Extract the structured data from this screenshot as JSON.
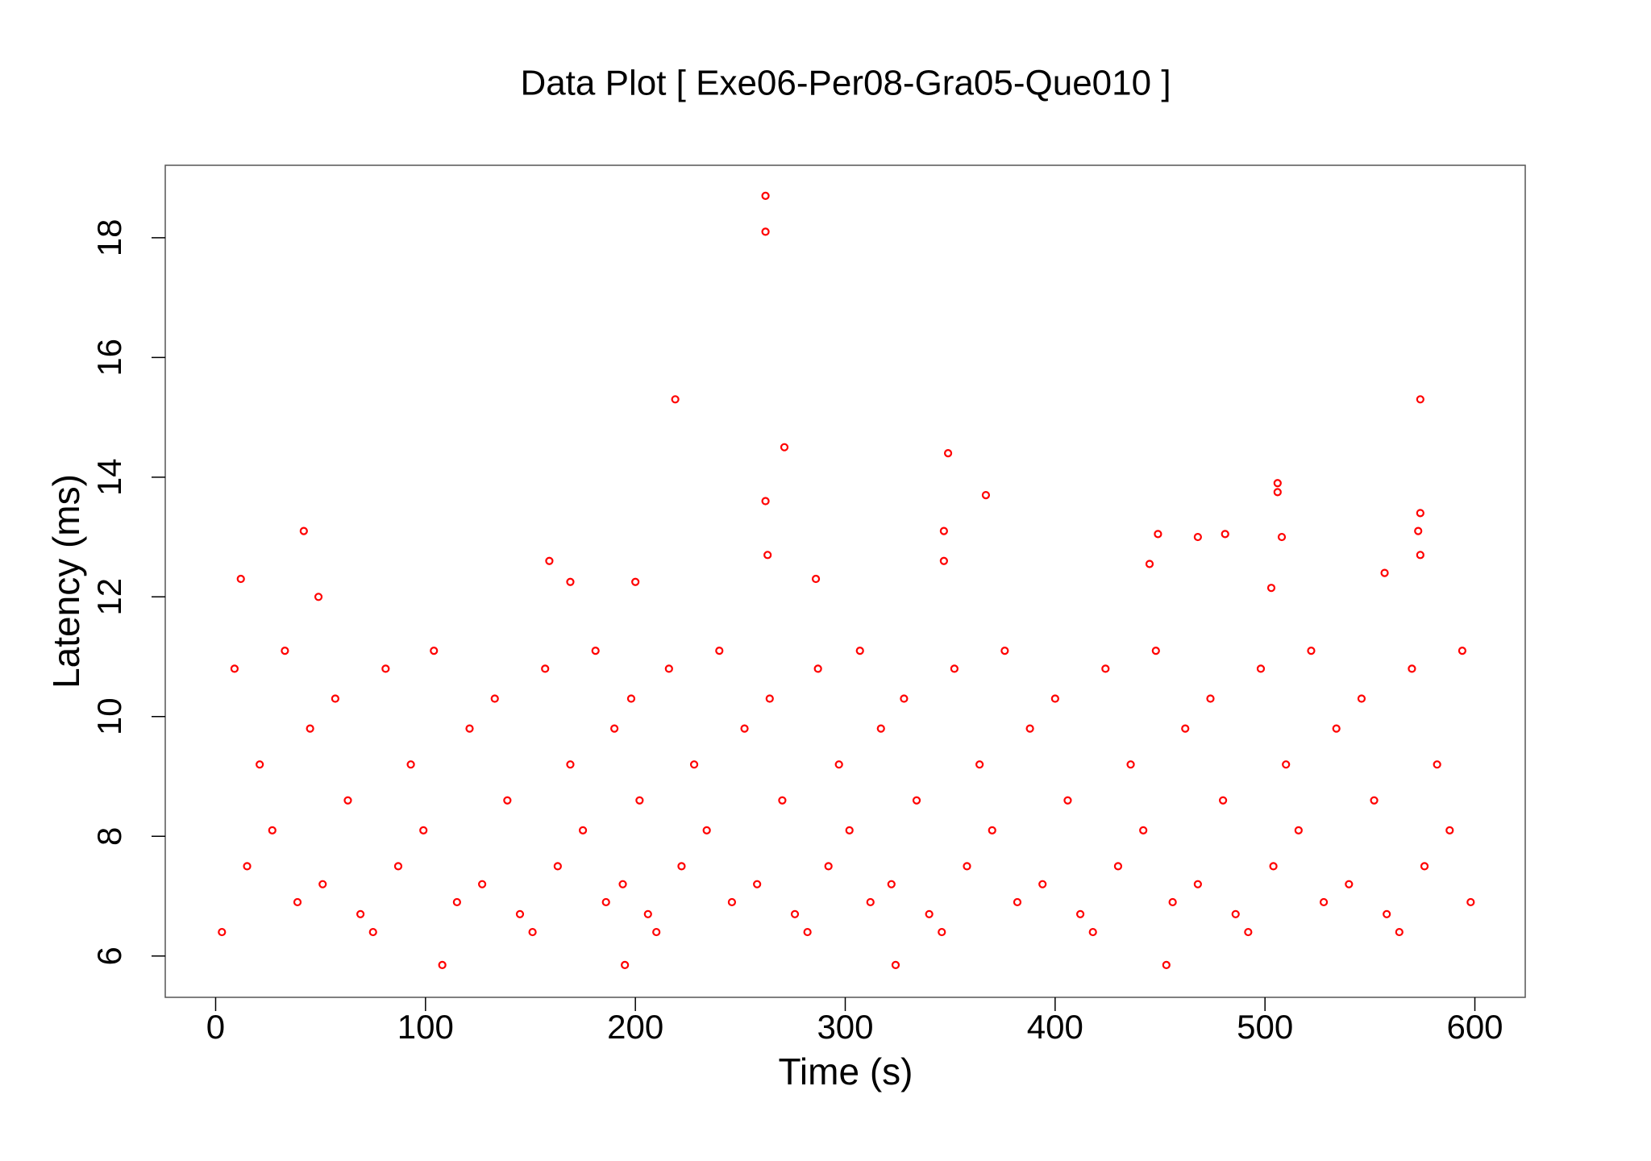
{
  "chart_data": {
    "type": "scatter",
    "title": "Data Plot [ Exe06-Per08-Gra05-Que010 ]",
    "x_label": "Time (s)",
    "y_label": "Latency (ms)",
    "color": "#ff0000",
    "xlim": [
      -24,
      624
    ],
    "ylim": [
      5.31,
      19.21
    ],
    "xticks": [
      0,
      100,
      200,
      300,
      400,
      500,
      600
    ],
    "yticks": [
      6,
      8,
      10,
      12,
      14,
      16,
      18
    ],
    "x": [
      262,
      262,
      219,
      271,
      262,
      263,
      349,
      347,
      347,
      367,
      574,
      574,
      573,
      574,
      506,
      506,
      508,
      481,
      468,
      449,
      445,
      42,
      12,
      49,
      159,
      169,
      200,
      286,
      557,
      503,
      108,
      195,
      324,
      453,
      3,
      9,
      15,
      21,
      27,
      33,
      39,
      45,
      51,
      57,
      63,
      69,
      75,
      81,
      87,
      93,
      99,
      104,
      115,
      121,
      127,
      133,
      139,
      145,
      151,
      157,
      163,
      169,
      175,
      181,
      186,
      190,
      194,
      198,
      202,
      206,
      210,
      216,
      222,
      228,
      234,
      240,
      246,
      252,
      258,
      264,
      270,
      276,
      282,
      287,
      292,
      297,
      302,
      307,
      312,
      317,
      322,
      328,
      334,
      340,
      346,
      352,
      358,
      364,
      370,
      376,
      382,
      388,
      394,
      400,
      406,
      412,
      418,
      424,
      430,
      436,
      442,
      448,
      456,
      462,
      468,
      474,
      480,
      486,
      492,
      498,
      504,
      510,
      516,
      522,
      528,
      534,
      540,
      546,
      552,
      558,
      564,
      570,
      576,
      582,
      588,
      594,
      598
    ],
    "values": [
      18.7,
      18.1,
      15.3,
      14.5,
      13.6,
      12.7,
      14.4,
      13.1,
      12.6,
      13.7,
      15.3,
      13.4,
      13.1,
      12.7,
      13.9,
      13.75,
      13.0,
      13.05,
      13.0,
      13.05,
      12.55,
      13.1,
      12.3,
      12.0,
      12.6,
      12.25,
      12.25,
      12.3,
      12.4,
      12.15,
      5.85,
      5.85,
      5.85,
      5.85,
      6.4,
      10.8,
      7.5,
      9.2,
      8.1,
      11.1,
      6.9,
      9.8,
      7.2,
      10.3,
      8.6,
      6.7,
      6.4,
      10.8,
      7.5,
      9.2,
      8.1,
      11.1,
      6.9,
      9.8,
      7.2,
      10.3,
      8.6,
      6.7,
      6.4,
      10.8,
      7.5,
      9.2,
      8.1,
      11.1,
      6.9,
      9.8,
      7.2,
      10.3,
      8.6,
      6.7,
      6.4,
      10.8,
      7.5,
      9.2,
      8.1,
      11.1,
      6.9,
      9.8,
      7.2,
      10.3,
      8.6,
      6.7,
      6.4,
      10.8,
      7.5,
      9.2,
      8.1,
      11.1,
      6.9,
      9.8,
      7.2,
      10.3,
      8.6,
      6.7,
      6.4,
      10.8,
      7.5,
      9.2,
      8.1,
      11.1,
      6.9,
      9.8,
      7.2,
      10.3,
      8.6,
      6.7,
      6.4,
      10.8,
      7.5,
      9.2,
      8.1,
      11.1,
      6.9,
      9.8,
      7.2,
      10.3,
      8.6,
      6.7,
      6.4,
      10.8,
      7.5,
      9.2,
      8.1,
      11.1,
      6.9,
      9.8,
      7.2,
      10.3,
      8.6,
      6.7,
      6.4,
      10.8,
      7.5,
      9.2,
      8.1,
      11.1,
      6.9
    ]
  }
}
